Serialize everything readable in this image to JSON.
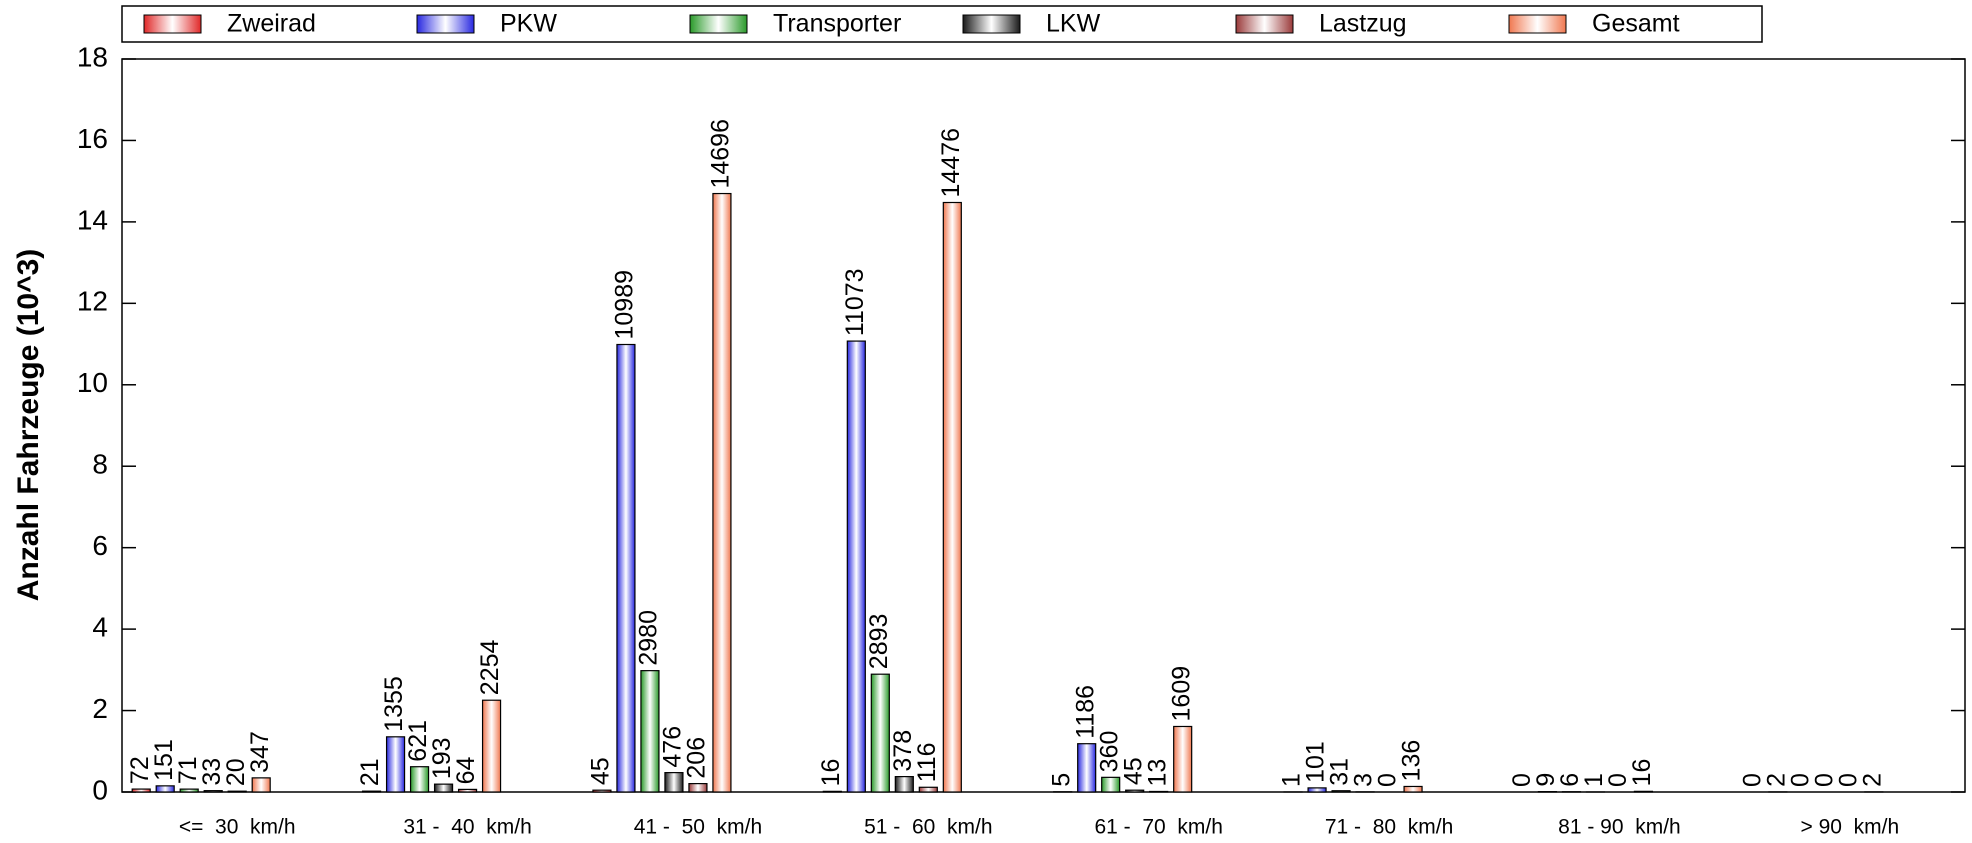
{
  "chart_data": {
    "type": "bar",
    "y_label": "Anzahl Fahrzeuge (10^3)",
    "categories": [
      "<=  30  km/h",
      "31 -  40  km/h",
      "41 -  50  km/h",
      "51 -  60  km/h",
      "61 -  70  km/h",
      "71 -  80  km/h",
      "81 - 90  km/h",
      "> 90  km/h"
    ],
    "series": [
      {
        "name": "Zweirad",
        "color": "#e02828",
        "values": [
          0.072,
          0.021,
          0.045,
          0.016,
          0.005,
          0.001,
          0,
          0
        ],
        "value_labels": [
          "72",
          "21",
          "45",
          "16",
          "5",
          "1",
          "0",
          "0"
        ]
      },
      {
        "name": "PKW",
        "color": "#2828e0",
        "values": [
          0.151,
          1.355,
          10.989,
          11.073,
          1.186,
          0.101,
          0.009,
          0.002
        ],
        "value_labels": [
          "151",
          "1355",
          "10989",
          "11073",
          "1186",
          "101",
          "9",
          "2"
        ]
      },
      {
        "name": "Transporter",
        "color": "#2a9a2a",
        "values": [
          0.071,
          0.621,
          2.98,
          2.893,
          0.36,
          0.031,
          0.006,
          0
        ],
        "value_labels": [
          "71",
          "621",
          "2980",
          "2893",
          "360",
          "31",
          "6",
          "0"
        ]
      },
      {
        "name": "LKW",
        "color": "#1a1a1a",
        "values": [
          0.033,
          0.193,
          0.476,
          0.378,
          0.045,
          0.003,
          0.001,
          0
        ],
        "value_labels": [
          "33",
          "193",
          "476",
          "378",
          "45",
          "3",
          "1",
          "0"
        ]
      },
      {
        "name": "Lastzug",
        "color": "#9a3a3a",
        "values": [
          0.02,
          0.064,
          0.206,
          0.116,
          0.013,
          0,
          0,
          0
        ],
        "value_labels": [
          "20",
          "64",
          "206",
          "116",
          "13",
          "0",
          "0",
          "0"
        ]
      },
      {
        "name": "Gesamt",
        "color": "#f07850",
        "values": [
          0.347,
          2.254,
          14.696,
          14.476,
          1.609,
          0.136,
          0.016,
          0.002
        ],
        "value_labels": [
          "347",
          "2254",
          "14696",
          "14476",
          "1609",
          "136",
          "16",
          "2"
        ]
      }
    ],
    "ylim": [
      0,
      18
    ],
    "yticks": [
      0,
      2,
      4,
      6,
      8,
      10,
      12,
      14,
      16,
      18
    ]
  }
}
